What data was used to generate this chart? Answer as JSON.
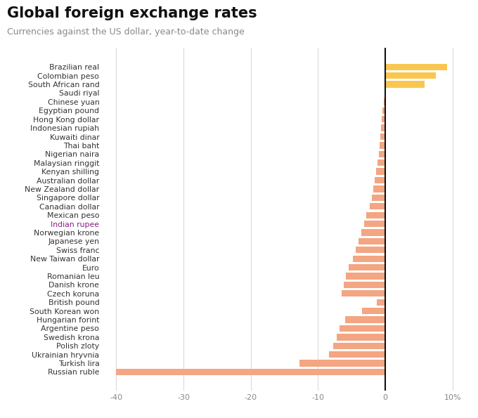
{
  "title": "Global foreign exchange rates",
  "subtitle": "Currencies against the US dollar, year-to-date change",
  "currencies": [
    "Brazilian real",
    "Colombian peso",
    "South African rand",
    "Saudi riyal",
    "Chinese yuan",
    "Egyptian pound",
    "Hong Kong dollar",
    "Indonesian rupiah",
    "Kuwaiti dinar",
    "Thai baht",
    "Nigerian naira",
    "Malaysian ringgit",
    "Kenyan shilling",
    "Australian dollar",
    "New Zealand dollar",
    "Singapore dollar",
    "Canadian dollar",
    "Mexican peso",
    "Indian rupee",
    "Norwegian krone",
    "Japanese yen",
    "Swiss franc",
    "New Taiwan dollar",
    "Euro",
    "Romanian leu",
    "Danish krone",
    "Czech koruna",
    "British pound",
    "South Korean won",
    "Hungarian forint",
    "Argentine peso",
    "Swedish krona",
    "Polish zloty",
    "Ukrainian hryvnia",
    "Turkish lira",
    "Russian ruble"
  ],
  "values": [
    9.2,
    7.5,
    5.8,
    0.05,
    -0.2,
    -0.4,
    -0.5,
    -0.6,
    -0.7,
    -0.9,
    -1.0,
    -1.2,
    -1.4,
    -1.6,
    -1.8,
    -2.0,
    -2.3,
    -2.8,
    -3.2,
    -3.6,
    -4.0,
    -4.4,
    -4.8,
    -5.5,
    -5.9,
    -6.2,
    -6.5,
    -1.3,
    -3.5,
    -6.0,
    -6.8,
    -7.2,
    -7.8,
    -8.4,
    -12.8,
    -40.0
  ],
  "label_colors": [
    "#333333",
    "#333333",
    "#333333",
    "#333333",
    "#333333",
    "#333333",
    "#333333",
    "#333333",
    "#333333",
    "#333333",
    "#333333",
    "#333333",
    "#333333",
    "#333333",
    "#333333",
    "#333333",
    "#333333",
    "#333333",
    "#8b1a8b",
    "#333333",
    "#333333",
    "#333333",
    "#333333",
    "#333333",
    "#333333",
    "#333333",
    "#333333",
    "#333333",
    "#333333",
    "#333333",
    "#333333",
    "#333333",
    "#333333",
    "#333333",
    "#333333",
    "#333333"
  ],
  "positive_color": "#F9C74F",
  "negative_color": "#F4A582",
  "title_fontsize": 15,
  "subtitle_fontsize": 9,
  "tick_fontsize": 8,
  "label_fontsize": 7.8,
  "xlim": [
    -42,
    12
  ],
  "xticks": [
    -40,
    -30,
    -20,
    -10,
    0,
    10
  ],
  "xtick_labels": [
    "-40",
    "-30",
    "-20",
    "-10",
    "0",
    "10%"
  ],
  "background_color": "#ffffff",
  "grid_color": "#d0d0d0"
}
